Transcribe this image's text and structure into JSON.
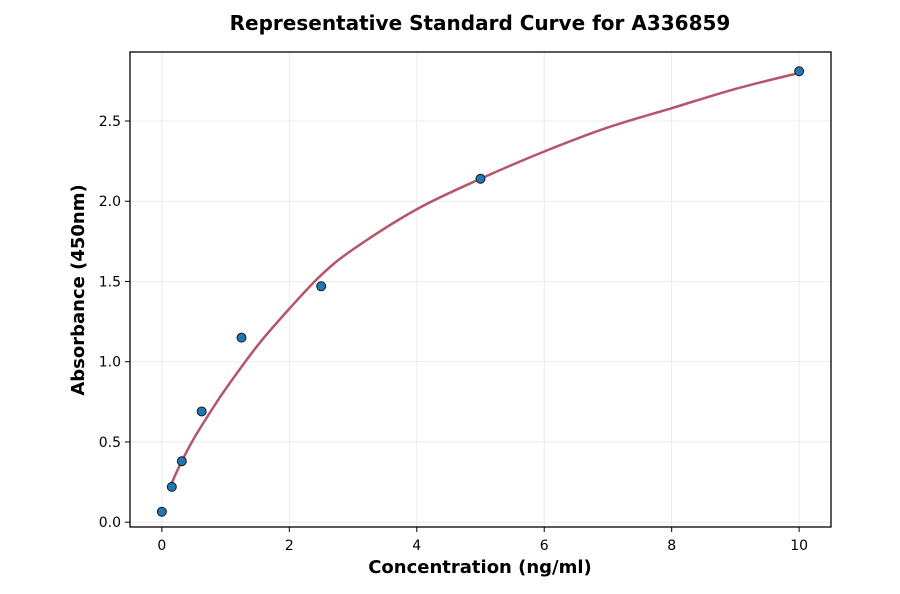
{
  "chart_data": {
    "type": "scatter",
    "title": "Representative Standard Curve for A336859",
    "xlabel": "Concentration (ng/ml)",
    "ylabel": "Absorbance (450nm)",
    "xlim": [
      -0.5,
      10.5
    ],
    "ylim": [
      -0.03,
      2.93
    ],
    "xticks": [
      0,
      2,
      4,
      6,
      8,
      10
    ],
    "xtick_labels": [
      "0",
      "2",
      "4",
      "6",
      "8",
      "10"
    ],
    "yticks": [
      0.0,
      0.5,
      1.0,
      1.5,
      2.0,
      2.5
    ],
    "ytick_labels": [
      "0.0",
      "0.5",
      "1.0",
      "1.5",
      "2.0",
      "2.5"
    ],
    "grid": true,
    "series": [
      {
        "kind": "points",
        "x": [
          0,
          0.156,
          0.313,
          0.625,
          1.25,
          2.5,
          5,
          10
        ],
        "y": [
          0.065,
          0.22,
          0.38,
          0.69,
          1.15,
          1.47,
          2.14,
          2.81
        ],
        "color": "#1f77b4"
      },
      {
        "kind": "fit-curve",
        "x": [
          0.15,
          0.3,
          0.5,
          0.75,
          1,
          1.5,
          2,
          2.5,
          3,
          4,
          5,
          6,
          7,
          8,
          9,
          10
        ],
        "y": [
          0.24,
          0.37,
          0.52,
          0.68,
          0.83,
          1.1,
          1.33,
          1.54,
          1.7,
          1.95,
          2.14,
          2.31,
          2.46,
          2.58,
          2.7,
          2.8
        ],
        "color": "#b5566a"
      }
    ]
  }
}
